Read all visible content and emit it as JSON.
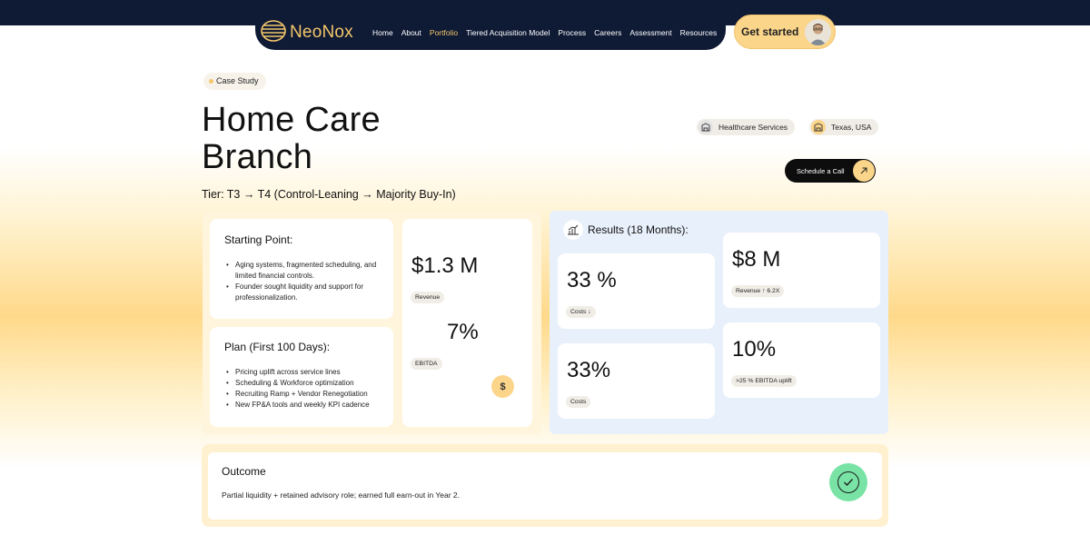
{
  "nav": {
    "brand": "NeoNox",
    "links": [
      "Home",
      "About",
      "Portfolio",
      "Tiered Acquisition Model",
      "Process",
      "Careers",
      "Assessment",
      "Resources"
    ],
    "active": "Portfolio",
    "cta": "Get started"
  },
  "hero": {
    "badge": "Case Study",
    "title_line1": "Home Care",
    "title_line2": "Branch",
    "tier": "Tier: T3 → T4 (Control-Leaning → Majority Buy-In)",
    "chips": [
      "Healthcare Services",
      "Texas, USA"
    ],
    "schedule_label": "Schedule a Call"
  },
  "starting_point": {
    "title": "Starting Point:",
    "items": [
      "Aging systems, fragmented scheduling, and limited financial controls.",
      "Founder sought liquidity and support for professionalization."
    ]
  },
  "plan": {
    "title": "Plan (First 100 Days):",
    "items": [
      "Pricing uplift across service lines",
      "Scheduling & Workforce optimization",
      "Recruiting Ramp + Vendor Renegotiation",
      "New FP&A tools and weekly KPI cadence"
    ]
  },
  "baseline": {
    "revenue_value": "$1.3 M",
    "revenue_label": "Revenue",
    "ebitda_value": "7%",
    "ebitda_label": "EBITDA"
  },
  "results": {
    "title": "Results (18 Months):",
    "cards": [
      {
        "value": "33 %",
        "label": "Costs ↓"
      },
      {
        "value": "$8 M",
        "label": "Revenue ↑ 6.2X"
      },
      {
        "value": "33%",
        "label": "Costs"
      },
      {
        "value": "10%",
        "label": ">25 % EBITDA uplift"
      }
    ]
  },
  "outcome": {
    "title": "Outcome",
    "text": "Partial liquidity + retained advisory role; earned full earn-out in Year 2."
  },
  "colors": {
    "navy": "#0f1a35",
    "gold": "#f4c76a",
    "accent_bg": "#fbd58a",
    "success": "#79e3a5"
  }
}
